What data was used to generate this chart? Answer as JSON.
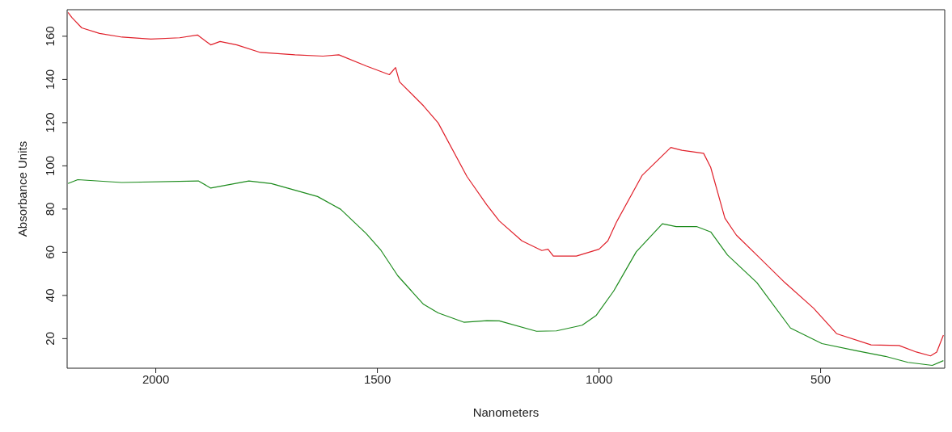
{
  "chart_data": {
    "type": "line",
    "xlabel": "Nanometers",
    "ylabel": "Absorbance Units",
    "xlim": [
      2200,
      220
    ],
    "ylim": [
      6.3,
      172.3
    ],
    "xticks": [
      2000,
      1500,
      1000,
      500
    ],
    "yticks": [
      20,
      40,
      60,
      80,
      100,
      120,
      140,
      160
    ],
    "marker": "none",
    "line_style": "solid",
    "series": [
      {
        "color": "#e0202a",
        "x": [
          2198,
          2189,
          2167,
          2127,
          2076,
          2011,
          1946,
          1906,
          1876,
          1855,
          1817,
          1764,
          1686,
          1623,
          1587,
          1525,
          1473,
          1459,
          1450,
          1396,
          1363,
          1298,
          1253,
          1225,
          1174,
          1129,
          1115,
          1103,
          1051,
          1000,
          980,
          961,
          903,
          838,
          813,
          764,
          748,
          716,
          690,
          644,
          581,
          516,
          464,
          386,
          323,
          284,
          252,
          238,
          223
        ],
        "values": [
          171,
          168.6,
          163.9,
          161.3,
          159.6,
          158.7,
          159.3,
          160.6,
          156,
          157.6,
          156,
          152.5,
          151.4,
          150.8,
          151.4,
          146.2,
          142.2,
          145.5,
          138.9,
          127.8,
          119.9,
          95.1,
          81.9,
          74.5,
          65.3,
          60.8,
          61.4,
          58.2,
          58.2,
          61.4,
          65.3,
          73.8,
          95.5,
          108.5,
          107.2,
          105.8,
          99.3,
          75.8,
          67.9,
          58.7,
          46,
          34.1,
          22.3,
          17.1,
          16.8,
          13.8,
          12,
          13.8,
          21.6
        ]
      },
      {
        "color": "#1e8c1e",
        "x": [
          2198,
          2176,
          2077,
          1904,
          1876,
          1790,
          1739,
          1635,
          1583,
          1525,
          1492,
          1454,
          1396,
          1363,
          1305,
          1253,
          1225,
          1141,
          1096,
          1038,
          1006,
          967,
          916,
          857,
          826,
          780,
          748,
          710,
          644,
          568,
          497,
          419,
          354,
          303,
          248,
          223
        ],
        "values": [
          91.8,
          93.6,
          92.3,
          93,
          89.7,
          93,
          91.8,
          85.8,
          79.9,
          68.6,
          60.9,
          49.1,
          35.9,
          31.9,
          27.6,
          28.3,
          28.2,
          23.4,
          23.6,
          26.2,
          30.8,
          42,
          60.2,
          73.2,
          71.9,
          71.9,
          69.4,
          58.7,
          46,
          24.9,
          17.7,
          14.4,
          11.8,
          9,
          7.6,
          9.8
        ]
      }
    ]
  }
}
